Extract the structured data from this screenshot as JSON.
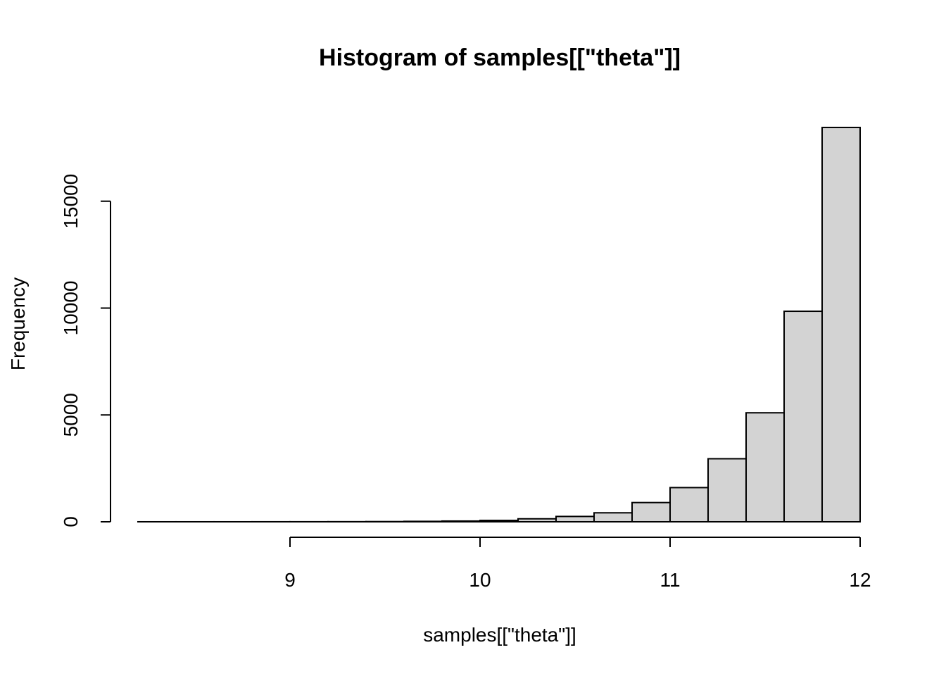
{
  "chart_data": {
    "type": "bar",
    "title": "Histogram of samples[[\"theta\"]]",
    "xlabel": "samples[[\"theta\"]]",
    "ylabel": "Frequency",
    "bin_edges": [
      8.2,
      8.4,
      8.6,
      8.8,
      9.0,
      9.2,
      9.4,
      9.6,
      9.8,
      10.0,
      10.2,
      10.4,
      10.6,
      10.8,
      11.0,
      11.2,
      11.4,
      11.6,
      11.8,
      12.0
    ],
    "values": [
      1,
      1,
      1,
      2,
      3,
      5,
      10,
      20,
      35,
      65,
      140,
      250,
      420,
      900,
      1600,
      2950,
      5100,
      9850,
      18450
    ],
    "bar_fill": "#d3d3d3",
    "xlim": [
      8.2,
      12.0
    ],
    "ylim": [
      0,
      18450
    ],
    "x_axis_ticks": [
      9,
      10,
      11,
      12
    ],
    "x_tick_labels": [
      "9",
      "10",
      "11",
      "12"
    ],
    "y_axis_ticks": [
      0,
      5000,
      10000,
      15000
    ],
    "y_tick_labels": [
      "0",
      "5000",
      "10000",
      "15000"
    ],
    "grid": false,
    "legend": "none"
  }
}
